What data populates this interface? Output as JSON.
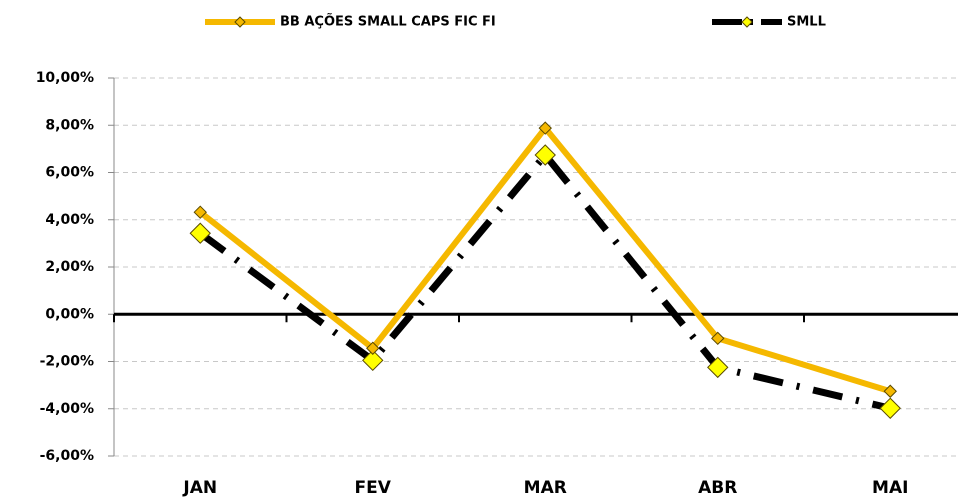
{
  "chart_data": {
    "type": "line",
    "categories": [
      "JAN",
      "FEV",
      "MAR",
      "ABR",
      "MAI"
    ],
    "series": [
      {
        "name": "BB AÇÕES SMALL CAPS FIC FI",
        "color": "#f5b800",
        "marker_color": "#f5b800",
        "line_style": "solid",
        "values": [
          4.32,
          -1.44,
          7.88,
          -1.02,
          -3.26
        ]
      },
      {
        "name": "SMLL",
        "color": "#000000",
        "marker_color": "#ffff00",
        "line_style": "dashdot",
        "values": [
          3.43,
          -1.95,
          6.74,
          -2.25,
          -3.98
        ]
      }
    ],
    "ylim": [
      -6,
      10
    ],
    "yticks": [
      {
        "value": -6,
        "label": "-6,00%"
      },
      {
        "value": -4,
        "label": "-4,00%"
      },
      {
        "value": -2,
        "label": "-2,00%"
      },
      {
        "value": 0,
        "label": "0,00%"
      },
      {
        "value": 2,
        "label": "2,00%"
      },
      {
        "value": 4,
        "label": "4,00%"
      },
      {
        "value": 6,
        "label": "6,00%"
      },
      {
        "value": 8,
        "label": "8,00%"
      },
      {
        "value": 10,
        "label": "10,00%"
      }
    ],
    "grid": true,
    "legend": "top"
  }
}
